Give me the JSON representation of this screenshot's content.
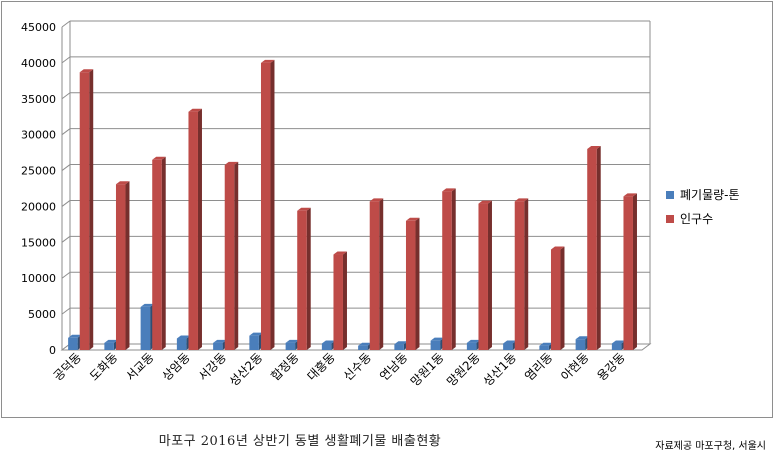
{
  "chart_data": {
    "type": "bar",
    "title": "",
    "xlabel": "",
    "ylabel": "",
    "ylim": [
      0,
      45000
    ],
    "yticks": [
      0,
      5000,
      10000,
      15000,
      20000,
      25000,
      30000,
      35000,
      40000,
      45000
    ],
    "grid": true,
    "legend_position": "right",
    "categories": [
      "공덕동",
      "도화동",
      "서교동",
      "상암동",
      "서강동",
      "성산2동",
      "합정동",
      "대흥동",
      "신수동",
      "연남동",
      "망원1동",
      "망원2동",
      "성산1동",
      "염리동",
      "아현동",
      "용강동"
    ],
    "series": [
      {
        "name": "폐기물량-톤",
        "color": "#4a7ebb",
        "values": [
          1700,
          1000,
          6000,
          1600,
          1000,
          2000,
          1000,
          900,
          600,
          800,
          1300,
          1000,
          900,
          600,
          1500,
          900
        ]
      },
      {
        "name": "인구수",
        "color": "#be4b48",
        "values": [
          38700,
          23100,
          26500,
          33200,
          25800,
          40000,
          19400,
          13300,
          20700,
          18000,
          22100,
          20400,
          20700,
          14000,
          28000,
          21400
        ]
      }
    ]
  },
  "caption": "마포구 2016년 상반기 동별 생활폐기물 배출현황",
  "source": "자료제공 마포구청, 서울시"
}
